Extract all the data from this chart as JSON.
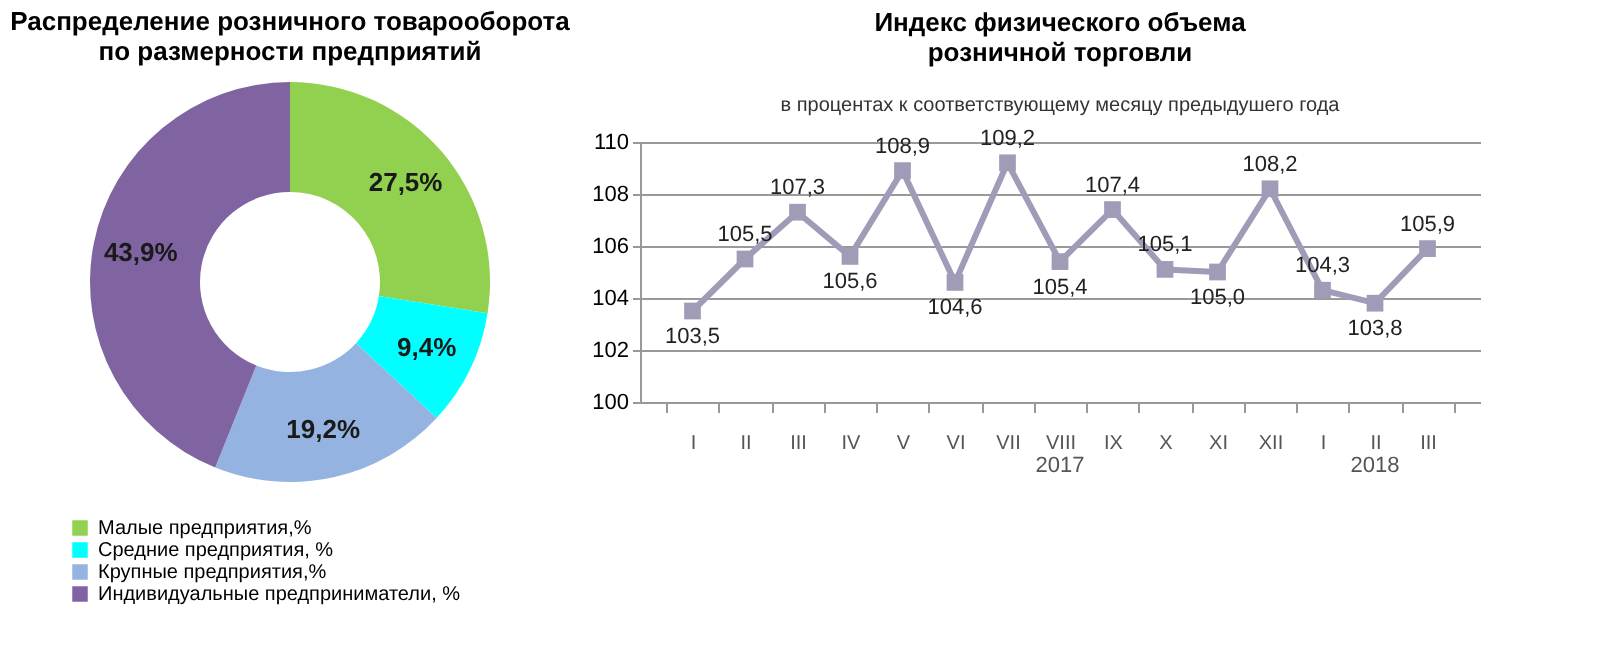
{
  "chart_data": [
    {
      "type": "donut",
      "title": "Распределение розничного товарооборота\nпо размерности предприятий",
      "categories": [
        "Малые предприятия,%",
        "Средние предприятия, %",
        "Крупные предприятия,%",
        "Индивидуальные предприниматели, %"
      ],
      "values": [
        27.5,
        9.4,
        19.2,
        43.9
      ],
      "value_labels": [
        "27,5%",
        "9,4%",
        "19,2%",
        "43,9%"
      ],
      "colors": [
        "#92d050",
        "#00ffff",
        "#95b3e0",
        "#8064a2"
      ],
      "legend": "bottom"
    },
    {
      "type": "line",
      "title": "Индекс физического объема\nрозничной торговли",
      "subtitle": "в процентах к соответствующему месяцу предыдушего года",
      "categories": [
        "I",
        "II",
        "III",
        "IV",
        "V",
        "VI",
        "VII",
        "VIII",
        "IX",
        "X",
        "XI",
        "XII",
        "I",
        "II",
        "III"
      ],
      "series": [
        {
          "color": "#a09cb8",
          "values": [
            103.5,
            105.5,
            107.3,
            105.6,
            108.9,
            104.6,
            109.2,
            105.4,
            107.4,
            105.1,
            105.0,
            108.2,
            104.3,
            103.8,
            105.9
          ]
        }
      ],
      "value_labels": [
        "103,5",
        "105,5",
        "107,3",
        "105,6",
        "108,9",
        "104,6",
        "109,2",
        "105,4",
        "107,4",
        "105,1",
        "105,0",
        "108,2",
        "104,3",
        "103,8",
        "105,9"
      ],
      "annotations": [
        "2017",
        "2018"
      ],
      "ylim": [
        100,
        110
      ],
      "yticks": [
        100,
        102,
        104,
        106,
        108,
        110
      ],
      "grid": "y",
      "marker": "square",
      "line_style": "solid"
    }
  ]
}
